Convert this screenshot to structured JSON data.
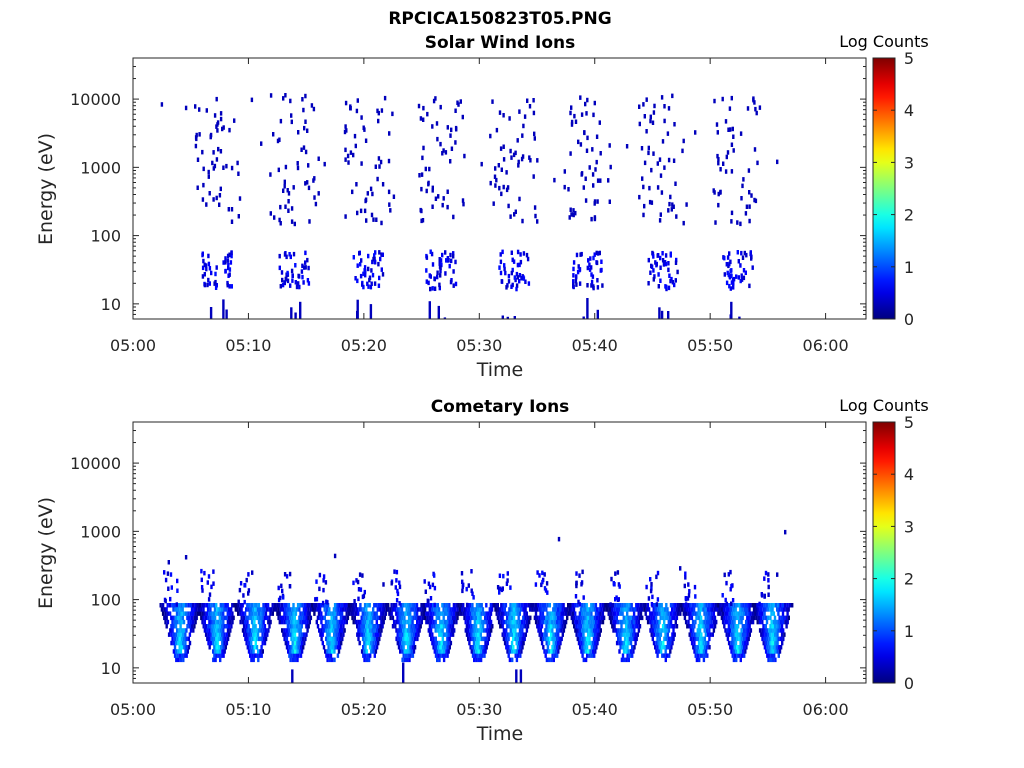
{
  "figure_title": "RPCICA150823T05.PNG",
  "colorbar_label": "Log Counts",
  "colorbar_ticks": [
    "0",
    "1",
    "2",
    "3",
    "4",
    "5"
  ],
  "colormap": [
    "#00007f",
    "#0000ff",
    "#007fff",
    "#00ffff",
    "#7fff7f",
    "#ffff00",
    "#ff7f00",
    "#ff0000",
    "#7f0000"
  ],
  "chart_data": [
    {
      "type": "heatmap",
      "title": "Solar Wind Ions",
      "xlabel": "Time",
      "ylabel": "Energy (eV)",
      "x_ticks": [
        "05:00",
        "05:10",
        "05:20",
        "05:30",
        "05:40",
        "05:50",
        "06:00"
      ],
      "y_ticks": [
        "10",
        "100",
        "1000",
        "10000"
      ],
      "y_scale": "log",
      "xlim_minutes": [
        0,
        63.5
      ],
      "ylim_ev": [
        6,
        40000
      ],
      "clim": [
        0,
        5
      ],
      "grid": false,
      "sweep_centers_minutes": [
        7.2,
        13.9,
        20.3,
        26.6,
        32.9,
        39.3,
        45.8,
        52.3
      ],
      "dominant_level": 0.3
    },
    {
      "type": "heatmap",
      "title": "Cometary Ions",
      "xlabel": "Time",
      "ylabel": "Energy (eV)",
      "x_ticks": [
        "05:00",
        "05:10",
        "05:20",
        "05:30",
        "05:40",
        "05:50",
        "06:00"
      ],
      "y_ticks": [
        "10",
        "100",
        "1000",
        "10000"
      ],
      "y_scale": "log",
      "xlim_minutes": [
        0,
        63.5
      ],
      "ylim_ev": [
        6,
        40000
      ],
      "clim": [
        0,
        5
      ],
      "grid": false,
      "sweep_centers_minutes": [
        4.0,
        7.2,
        10.5,
        13.9,
        17.1,
        20.3,
        23.6,
        26.6,
        29.8,
        32.9,
        36.1,
        39.3,
        42.6,
        45.8,
        49.1,
        52.3,
        55.3
      ],
      "peak_energy_ev": [
        20,
        60
      ],
      "peak_level": 2.0
    }
  ]
}
